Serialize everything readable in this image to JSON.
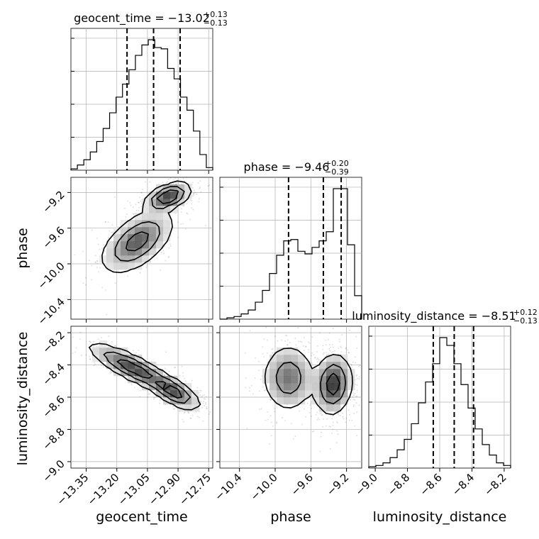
{
  "chart_data": {
    "type": "corner",
    "parameters": [
      {
        "name": "geocent_time",
        "xlabel": "geocent_time",
        "title_main": "geocent_time = −13.02",
        "title_sup": "+0.13",
        "title_sub": "−0.13",
        "range": [
          -13.425,
          -12.73
        ],
        "ticks": [
          -13.35,
          -13.2,
          -13.05,
          -12.9,
          -12.75
        ],
        "tick_labels": [
          "−13.35",
          "−13.20",
          "−13.05",
          "−12.90",
          "−12.75"
        ],
        "quantiles": [
          -13.15,
          -13.02,
          -12.89
        ],
        "hist": [
          1,
          4,
          8,
          14,
          22,
          32,
          44,
          56,
          66,
          77,
          88,
          96,
          100,
          94,
          93,
          78,
          70,
          56,
          46,
          30,
          12,
          2
        ]
      },
      {
        "name": "phase",
        "xlabel": "phase",
        "title_main": "phase = −9.46",
        "title_sup": "+0.20",
        "title_sub": "−0.39",
        "range": [
          -10.62,
          -9.03
        ],
        "ticks": [
          -10.4,
          -10.0,
          -9.6,
          -9.2
        ],
        "tick_labels": [
          "−10.4",
          "−10.0",
          "−9.6",
          "−9.2"
        ],
        "quantiles": [
          -9.85,
          -9.46,
          -9.26
        ],
        "hist": [
          0,
          1,
          2,
          4,
          7,
          13,
          22,
          35,
          49,
          60,
          61,
          52,
          50,
          55,
          60,
          67,
          100,
          100,
          57,
          18
        ]
      },
      {
        "name": "luminosity_distance",
        "xlabel": "luminosity_distance",
        "title_main": "luminosity_distance = −8.51",
        "title_sup": "+0.12",
        "title_sub": "−0.13",
        "range": [
          -9.04,
          -8.16
        ],
        "ticks": [
          -9.0,
          -8.8,
          -8.6,
          -8.4,
          -8.2
        ],
        "tick_labels": [
          "−9.0",
          "−8.8",
          "−8.6",
          "−8.4",
          "−8.2"
        ],
        "quantiles": [
          -8.64,
          -8.51,
          -8.39
        ],
        "hist": [
          1,
          2,
          4,
          8,
          14,
          22,
          34,
          50,
          66,
          80,
          100,
          94,
          80,
          64,
          46,
          30,
          18,
          10,
          4,
          2
        ]
      }
    ],
    "density": {
      "phase_vs_geocent_time": {
        "modes": [
          {
            "x": -12.95,
            "y": -9.25,
            "sx": 0.05,
            "sy": 0.07,
            "rho": 0.5,
            "w": 1.0
          },
          {
            "x": -13.1,
            "y": -9.75,
            "sx": 0.08,
            "sy": 0.16,
            "rho": 0.55,
            "w": 0.7
          }
        ],
        "contour_levels": [
          0.08,
          0.3,
          0.6
        ]
      },
      "luminosity_distance_vs_geocent_time": {
        "modes": [
          {
            "x": -13.12,
            "y": -8.42,
            "sx": 0.1,
            "sy": 0.07,
            "rho": -0.85,
            "w": 1.0
          },
          {
            "x": -12.92,
            "y": -8.57,
            "sx": 0.06,
            "sy": 0.05,
            "rho": -0.7,
            "w": 0.9
          }
        ],
        "contour_levels": [
          0.1,
          0.35,
          0.7
        ]
      },
      "luminosity_distance_vs_phase": {
        "modes": [
          {
            "x": -9.35,
            "y": -8.52,
            "sx": 0.1,
            "sy": 0.09,
            "rho": 0.1,
            "w": 1.0
          },
          {
            "x": -9.85,
            "y": -8.48,
            "sx": 0.14,
            "sy": 0.1,
            "rho": 0.0,
            "w": 0.65
          }
        ],
        "contour_levels": [
          0.12,
          0.4,
          0.75
        ]
      }
    }
  }
}
